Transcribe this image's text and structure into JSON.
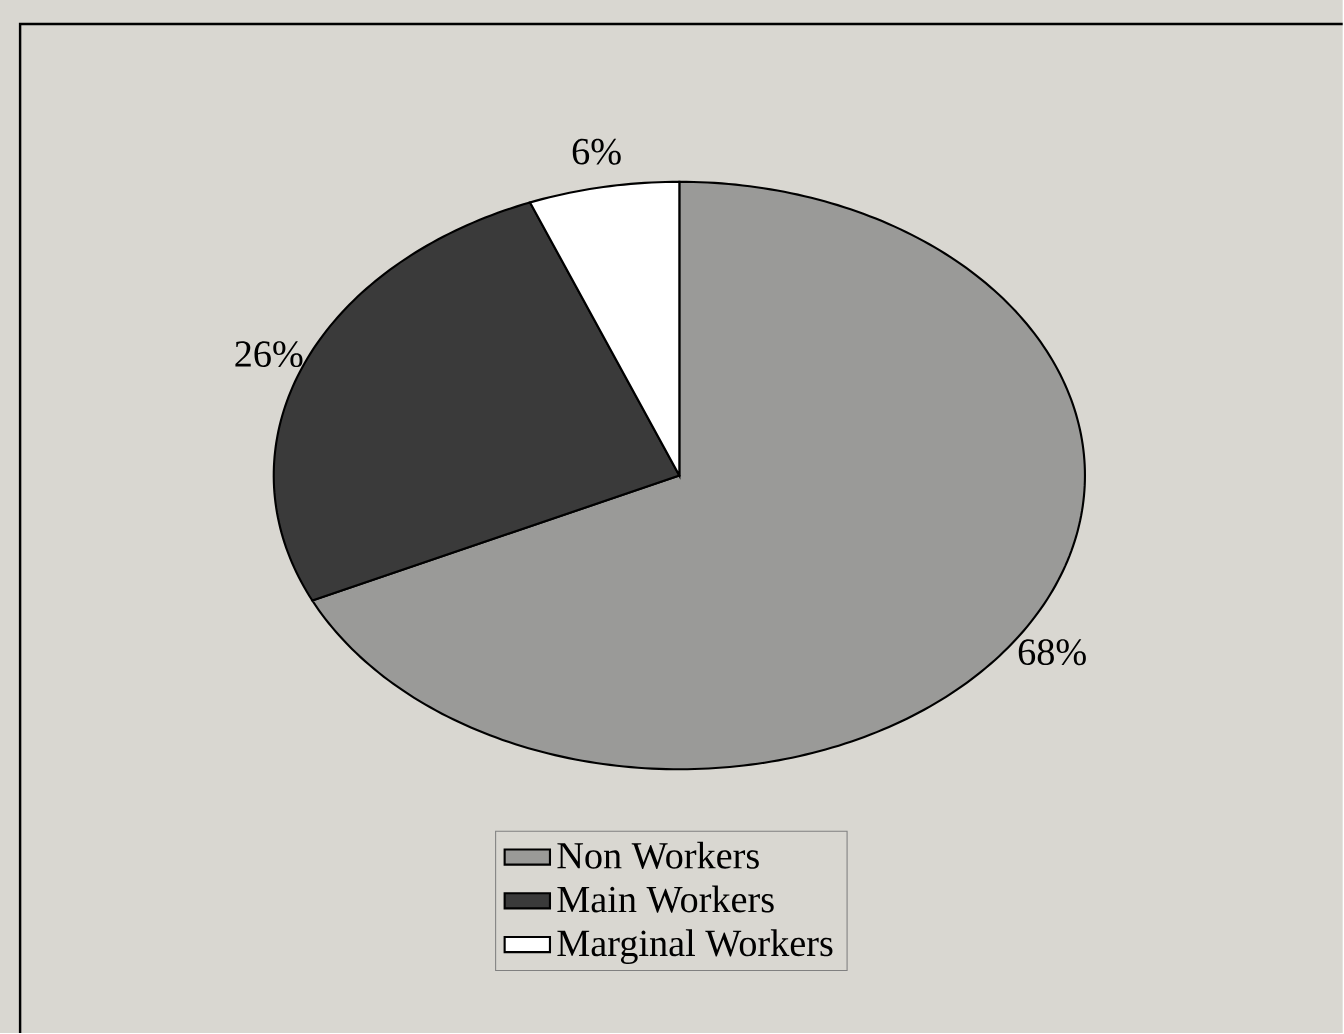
{
  "chart_data": {
    "type": "pie",
    "categories": [
      "Non Workers",
      "Main Workers",
      "Marginal Workers"
    ],
    "values": [
      68,
      26,
      6
    ],
    "colors": [
      "#9a9a98",
      "#3a3a3a",
      "#ffffff"
    ],
    "value_labels": [
      "68%",
      "26%",
      "6%"
    ],
    "legend": "bottom"
  }
}
